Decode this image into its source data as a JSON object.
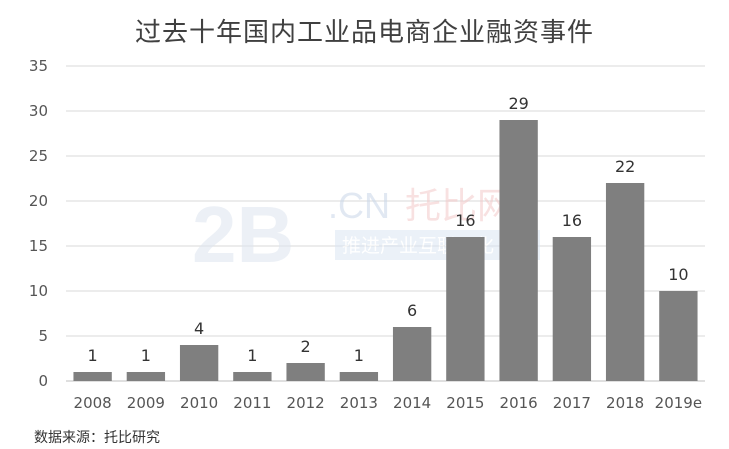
{
  "chart_data": {
    "type": "bar",
    "title": "过去十年国内工业品电商企业融资事件",
    "categories": [
      "2008",
      "2009",
      "2010",
      "2011",
      "2012",
      "2013",
      "2014",
      "2015",
      "2016",
      "2017",
      "2018",
      "2019e"
    ],
    "values": [
      1,
      1,
      4,
      1,
      2,
      1,
      6,
      16,
      29,
      16,
      22,
      10
    ],
    "ylim": [
      0,
      35
    ],
    "yticks": [
      0,
      5,
      10,
      15,
      20,
      25,
      30,
      35
    ],
    "grid": true,
    "bar_color": "#7f7f7f",
    "grid_color": "#d9d9d9",
    "source": "数据来源：托比研究",
    "watermark": [
      "2B",
      ".CN",
      "托比网",
      "推进产业互联网化"
    ]
  }
}
